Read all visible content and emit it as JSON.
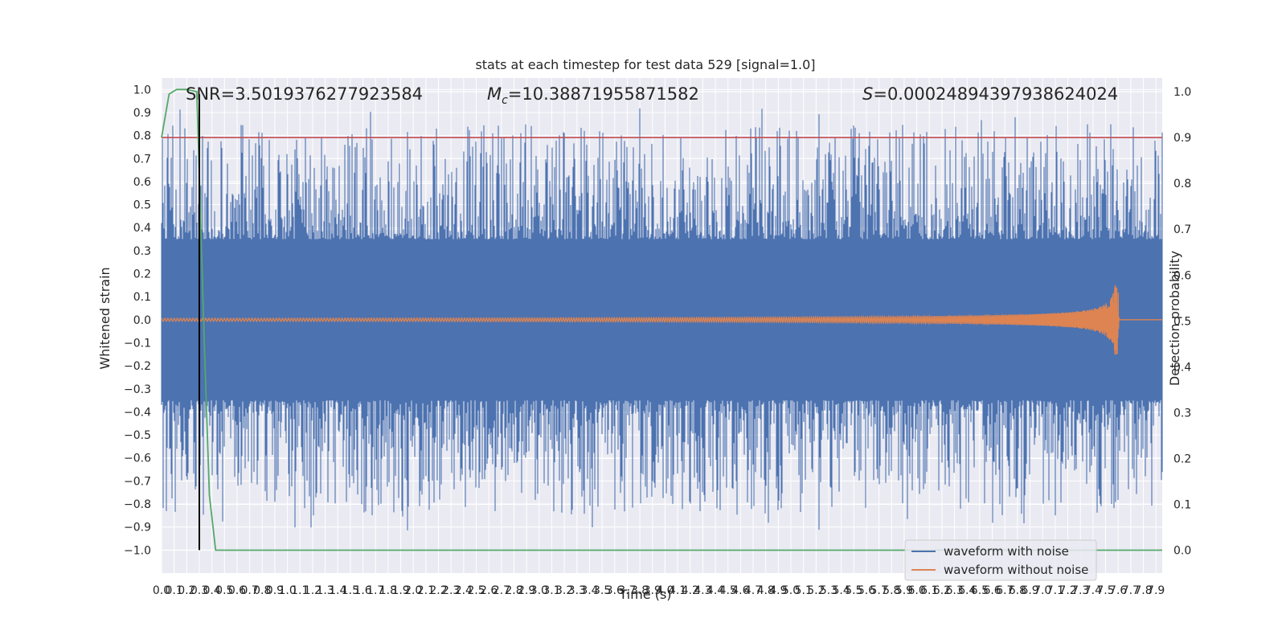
{
  "chart_data": {
    "type": "line",
    "title": "stats at each timestep for test data 529 [signal=1.0]",
    "xlabel": "Time (s)",
    "ylabel": "Whitened strain",
    "ylabel_right": "Detection probability",
    "xlim": [
      0.0,
      7.95
    ],
    "ylim": [
      -1.1,
      1.05
    ],
    "ylim_right": [
      -0.05,
      1.03
    ],
    "x_ticks": [
      "0.0",
      "0.1",
      "0.2",
      "0.3",
      "0.4",
      "0.5",
      "0.6",
      "0.7",
      "0.8",
      "0.9",
      "1.0",
      "1.1",
      "1.2",
      "1.3",
      "1.4",
      "1.5",
      "1.6",
      "1.7",
      "1.8",
      "1.9",
      "2.0",
      "2.1",
      "2.2",
      "2.3",
      "2.4",
      "2.5",
      "2.6",
      "2.7",
      "2.8",
      "2.9",
      "3.0",
      "3.1",
      "3.2",
      "3.3",
      "3.4",
      "3.5",
      "3.6",
      "3.7",
      "3.8",
      "3.9",
      "4.0",
      "4.1",
      "4.2",
      "4.3",
      "4.4",
      "4.5",
      "4.6",
      "4.7",
      "4.8",
      "4.9",
      "5.0",
      "5.1",
      "5.2",
      "5.3",
      "5.4",
      "5.5",
      "5.6",
      "5.7",
      "5.8",
      "5.9",
      "6.0",
      "6.1",
      "6.2",
      "6.3",
      "6.4",
      "6.5",
      "6.6",
      "6.7",
      "6.8",
      "6.9",
      "7.0",
      "7.1",
      "7.2",
      "7.3",
      "7.4",
      "7.5",
      "7.6",
      "7.7",
      "7.8",
      "7.9"
    ],
    "y_ticks": [
      "1.0",
      "0.9",
      "0.8",
      "0.7",
      "0.6",
      "0.5",
      "0.4",
      "0.3",
      "0.2",
      "0.1",
      "0.0",
      "−0.1",
      "−0.2",
      "−0.3",
      "−0.4",
      "−0.5",
      "−0.6",
      "−0.7",
      "−0.8",
      "−0.9",
      "−1.0"
    ],
    "y_right_ticks": [
      "1.0",
      "0.9",
      "0.8",
      "0.7",
      "0.6",
      "0.5",
      "0.4",
      "0.3",
      "0.2",
      "0.1",
      "0.0"
    ],
    "grid": true,
    "legend_position": "lower-right",
    "annotations": {
      "snr": "SNR=3.5019376277923584",
      "mc_symbol": "M",
      "mc_sub": "c",
      "mc_value": "=10.38871955871582",
      "s_symbol": "S",
      "s_value": "=0.00024894397938624024"
    },
    "series": [
      {
        "name": "waveform with noise",
        "color": "#4c72b0",
        "axis": "left",
        "description": "dense noise band, envelope approximately ±0.9"
      },
      {
        "name": "waveform without noise",
        "color": "#dd8452",
        "axis": "left",
        "chirp_peak_time": 7.6,
        "chirp_peak_amplitude": 0.16,
        "end_time": 7.61
      },
      {
        "color": "#55a868",
        "axis": "right",
        "x": [
          0.0,
          0.06,
          0.12,
          0.2,
          0.28,
          0.3,
          0.34,
          0.38,
          0.43,
          7.95
        ],
        "y": [
          0.9,
          0.995,
          1.005,
          1.005,
          1.0,
          0.82,
          0.45,
          0.12,
          0.0,
          0.0
        ]
      }
    ],
    "threshold_line": {
      "axis": "right",
      "value": 0.9,
      "color": "#c44e52"
    },
    "vertical_marker": {
      "x": 0.3,
      "color": "#000000"
    },
    "colors": {
      "plot_background": "#eaeaf2",
      "grid": "#ffffff",
      "noise": "#4c72b0",
      "clean": "#dd8452",
      "probability": "#55a868",
      "threshold": "#c44e52"
    }
  }
}
